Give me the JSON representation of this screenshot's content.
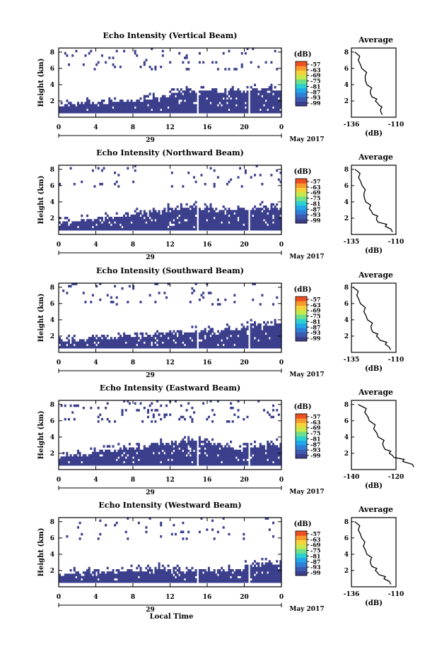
{
  "figure": {
    "x_axis_label": "Local Time",
    "date_label": "May 2017",
    "day_label": "29",
    "time_ticks": [
      "0",
      "4",
      "8",
      "12",
      "16",
      "20",
      "0"
    ],
    "height_label": "Height (km)",
    "height_ticks": [
      "2",
      "4",
      "6",
      "8"
    ],
    "average_title": "Average",
    "avg_x_label": "(dB)",
    "colorbar_unit": "(dB)",
    "colorbar_ticks": [
      "-57",
      "-63",
      "-69",
      "-75",
      "-81",
      "-87",
      "-93",
      "-99"
    ],
    "colormap": [
      "#3b3f8c",
      "#3c5bb0",
      "#2f7fd6",
      "#21a7e8",
      "#2cd0d0",
      "#6fe08a",
      "#c7e84a",
      "#f4d23a",
      "#f79a2e",
      "#ee4f22"
    ],
    "echo_color": "#3b3f8c"
  },
  "chart_data": [
    {
      "type": "heatmap",
      "title": "Echo Intensity (Vertical Beam)",
      "xlabel": "",
      "ylabel": "Height (km)",
      "xlim": [
        0,
        24
      ],
      "ylim": [
        0,
        8.5
      ],
      "colorbar_range": [
        -99,
        -57
      ],
      "echo_top_km": [
        1.3,
        1.4,
        1.5,
        1.5,
        1.6,
        1.7,
        1.8,
        1.9,
        2.0,
        2.0,
        2.2,
        2.4,
        2.6,
        2.8,
        3.0,
        3.0,
        3.1,
        3.1,
        3.1,
        3.1,
        3.1,
        3.2,
        3.2,
        3.2
      ],
      "average_profile": {
        "title": "Average",
        "xlabel": "(dB)",
        "xticks": [
          "-136",
          "-110"
        ],
        "x": [
          -118,
          -119,
          -120,
          -122,
          -124,
          -125,
          -127,
          -128,
          -130,
          -132,
          -134
        ],
        "height_km": [
          0.3,
          1.0,
          1.5,
          2.0,
          2.5,
          3.2,
          4.0,
          5.0,
          6.0,
          7.0,
          8.0
        ]
      }
    },
    {
      "type": "heatmap",
      "title": "Echo Intensity (Northward Beam)",
      "xlabel": "",
      "ylabel": "Height (km)",
      "xlim": [
        0,
        24
      ],
      "ylim": [
        0,
        8.5
      ],
      "colorbar_range": [
        -99,
        -57
      ],
      "echo_top_km": [
        1.4,
        1.5,
        1.6,
        1.7,
        1.8,
        2.0,
        2.1,
        2.2,
        2.3,
        2.4,
        2.6,
        2.8,
        3.0,
        3.1,
        3.2,
        3.0,
        2.9,
        2.8,
        2.7,
        2.8,
        2.9,
        3.0,
        3.0,
        3.1
      ],
      "average_profile": {
        "title": "Average",
        "xlabel": "(dB)",
        "xticks": [
          "-135",
          "-110"
        ],
        "x": [
          -112,
          -116,
          -120,
          -121,
          -123,
          -125,
          -127,
          -128,
          -129,
          -131,
          -133
        ],
        "height_km": [
          0.3,
          1.0,
          1.5,
          2.0,
          2.5,
          3.2,
          4.0,
          5.0,
          6.0,
          7.0,
          8.0
        ]
      }
    },
    {
      "type": "heatmap",
      "title": "Echo Intensity (Southward Beam)",
      "xlabel": "",
      "ylabel": "Height (km)",
      "xlim": [
        0,
        24
      ],
      "ylim": [
        0,
        8.5
      ],
      "colorbar_range": [
        -99,
        -57
      ],
      "echo_top_km": [
        1.2,
        1.3,
        1.3,
        1.4,
        1.5,
        1.6,
        1.7,
        1.8,
        1.8,
        1.9,
        2.0,
        2.1,
        2.2,
        2.3,
        2.4,
        2.4,
        2.5,
        2.5,
        2.6,
        2.8,
        3.0,
        3.2,
        3.3,
        3.4
      ],
      "average_profile": {
        "title": "Average",
        "xlabel": "(dB)",
        "xticks": [
          "-135",
          "-110"
        ],
        "x": [
          -113,
          -116,
          -119,
          -121,
          -123,
          -124,
          -126,
          -128,
          -130,
          -132,
          -134
        ],
        "height_km": [
          0.3,
          1.0,
          1.5,
          2.0,
          2.5,
          3.2,
          4.0,
          5.0,
          6.0,
          7.0,
          8.0
        ]
      }
    },
    {
      "type": "heatmap",
      "title": "Echo Intensity (Eastward Beam)",
      "xlabel": "",
      "ylabel": "Height (km)",
      "xlim": [
        0,
        24
      ],
      "ylim": [
        0,
        8.5
      ],
      "colorbar_range": [
        -99,
        -57
      ],
      "echo_top_km": [
        1.4,
        1.5,
        1.7,
        1.9,
        2.1,
        2.2,
        2.3,
        2.4,
        2.5,
        2.6,
        2.8,
        3.0,
        3.2,
        3.3,
        3.4,
        3.2,
        3.0,
        2.8,
        2.6,
        2.5,
        2.6,
        2.7,
        2.8,
        2.9
      ],
      "average_profile": {
        "title": "Average",
        "xlabel": "(dB)",
        "xticks": [
          "-140",
          "-120"
        ],
        "x": [
          -112,
          -117,
          -121,
          -123,
          -125,
          -126,
          -128,
          -130,
          -132,
          -134,
          -137
        ],
        "height_km": [
          0.3,
          1.0,
          1.5,
          2.0,
          2.5,
          3.2,
          4.0,
          5.0,
          6.0,
          7.0,
          8.0
        ]
      }
    },
    {
      "type": "heatmap",
      "title": "Echo Intensity (Westward Beam)",
      "xlabel": "Local Time",
      "ylabel": "Height (km)",
      "xlim": [
        0,
        24
      ],
      "ylim": [
        0,
        8.5
      ],
      "colorbar_range": [
        -99,
        -57
      ],
      "echo_top_km": [
        1.3,
        1.4,
        1.5,
        1.5,
        1.6,
        1.7,
        1.7,
        1.8,
        1.8,
        1.9,
        1.9,
        2.0,
        2.0,
        1.9,
        1.8,
        1.8,
        1.8,
        1.9,
        1.9,
        2.0,
        2.4,
        2.6,
        2.7,
        2.8
      ],
      "average_profile": {
        "title": "Average",
        "xlabel": "(dB)",
        "xticks": [
          "-136",
          "-110"
        ],
        "x": [
          -113,
          -117,
          -120,
          -122,
          -124,
          -125,
          -127,
          -129,
          -130,
          -132,
          -134
        ],
        "height_km": [
          0.3,
          1.0,
          1.5,
          2.0,
          2.5,
          3.2,
          4.0,
          5.0,
          6.0,
          7.0,
          8.0
        ]
      }
    }
  ]
}
